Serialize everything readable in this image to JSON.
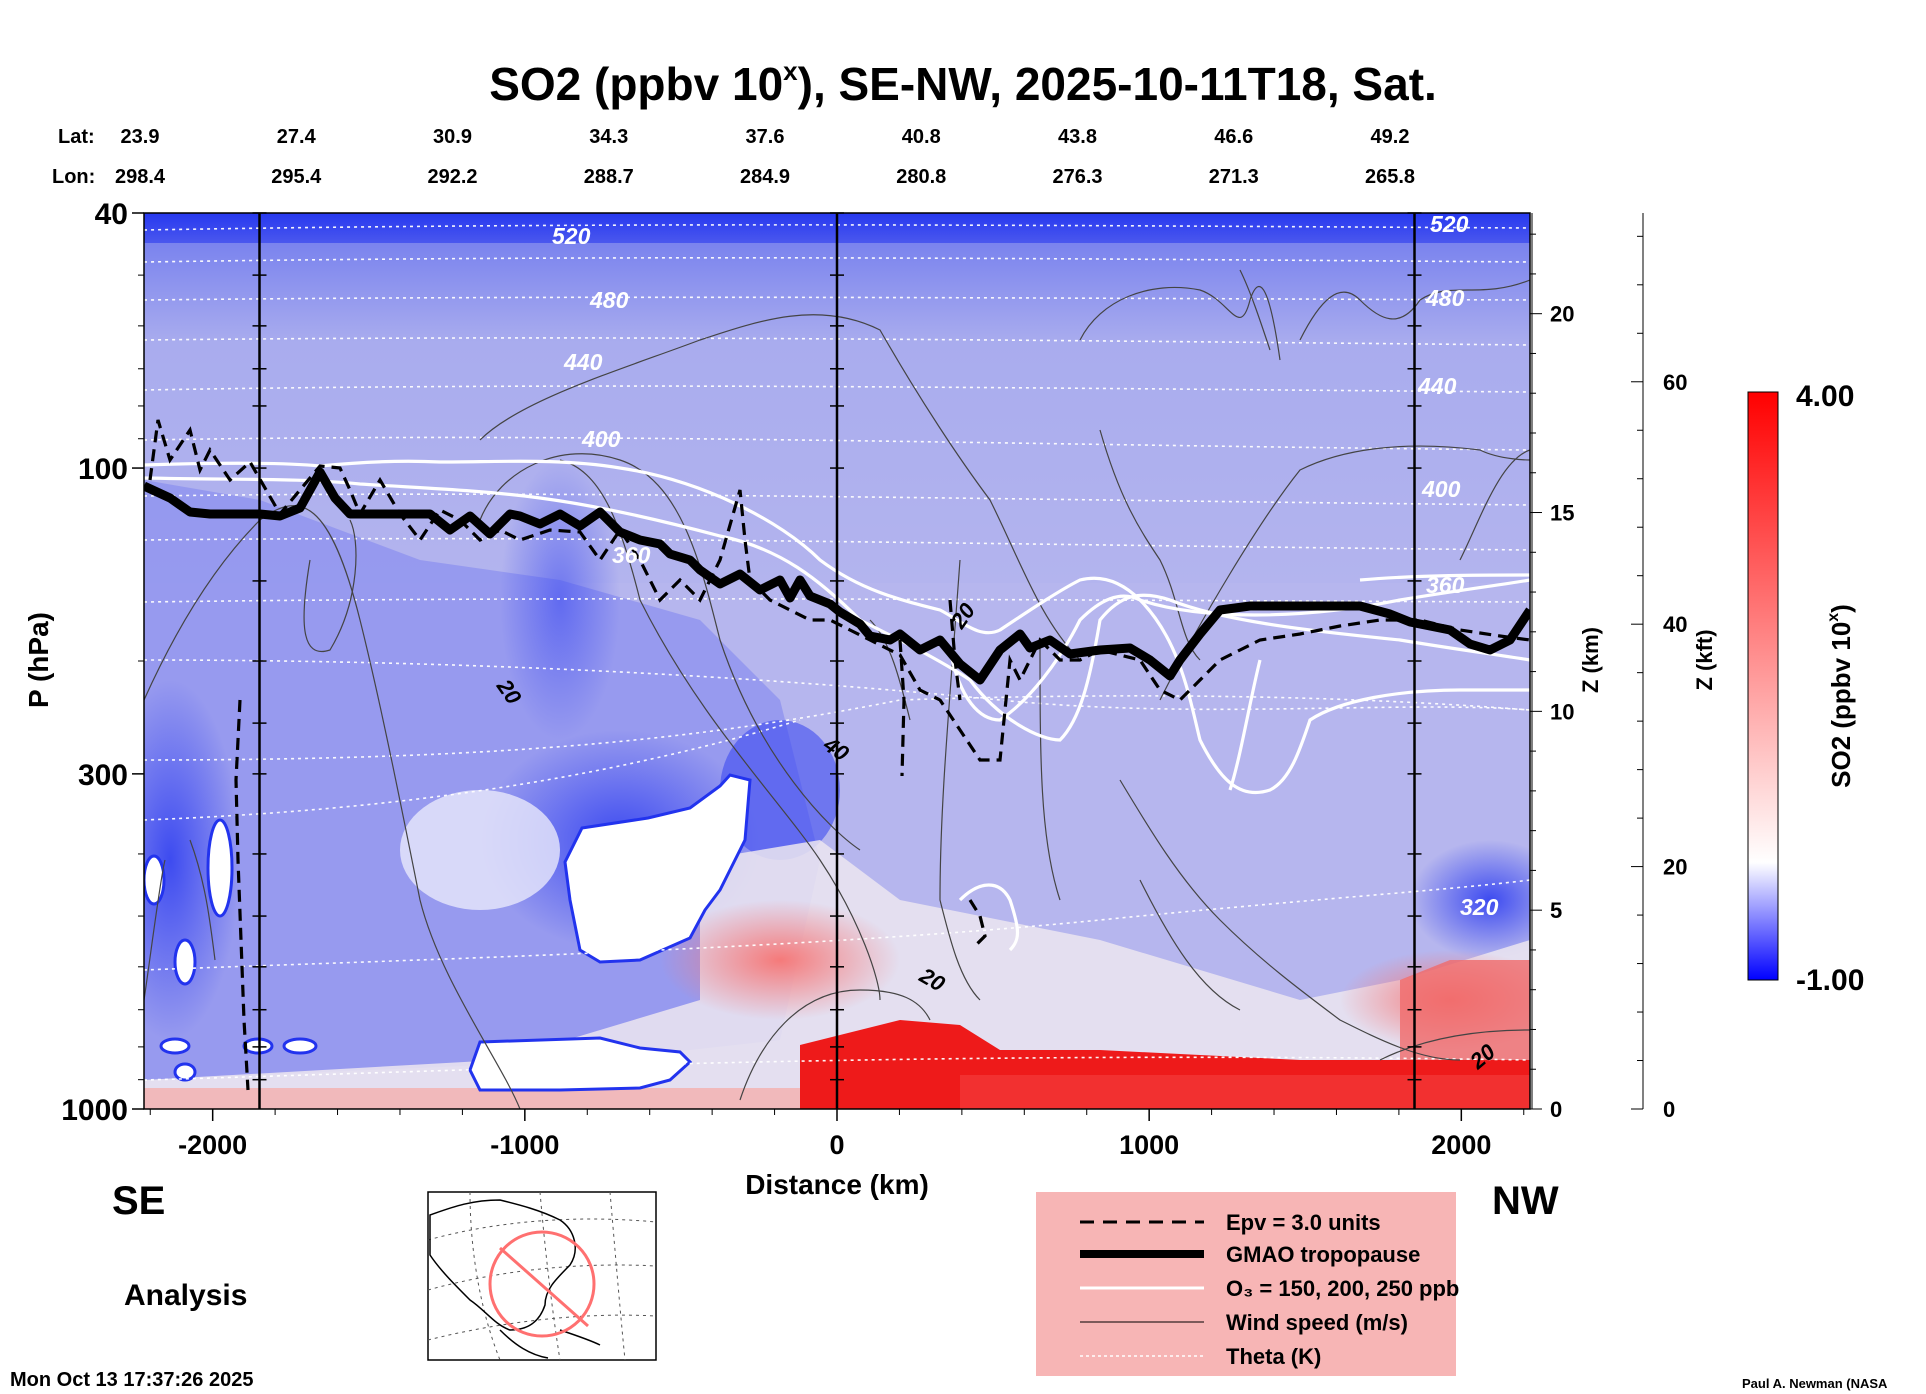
{
  "chart_data": {
    "type": "heatmap",
    "title": "SO2 (ppbv 10ˣ), SE-NW, 2025-10-11T18, Sat.",
    "title_main": "SO2 (ppbv 10",
    "title_sup": "x",
    "title_rest": "), SE-NW, 2025-10-11T18, Sat.",
    "lat_label": "Lat:",
    "lon_label": "Lon:",
    "lat_ticks": [
      "23.9",
      "27.4",
      "30.9",
      "34.3",
      "37.6",
      "40.8",
      "43.8",
      "46.6",
      "49.2"
    ],
    "lon_ticks": [
      "298.4",
      "295.4",
      "292.2",
      "288.7",
      "284.9",
      "280.8",
      "276.3",
      "271.3",
      "265.8"
    ],
    "xlabel": "Distance (km)",
    "x_ticks": [
      -2000,
      -1000,
      0,
      1000,
      2000
    ],
    "x_tick_labels": [
      "-2000",
      "-1000",
      "0",
      "1000",
      "2000"
    ],
    "xlim": [
      -2220,
      2220
    ],
    "ylabel": "P (hPa)",
    "y_scale": "log",
    "ylim": [
      1000,
      40
    ],
    "y_ticks": [
      40,
      100,
      300,
      1000
    ],
    "y_tick_labels": [
      "40",
      "100",
      "300",
      "1000"
    ],
    "z_km_label": "Z (km)",
    "z_km_ticks": [
      "0",
      "5",
      "10",
      "15",
      "20"
    ],
    "z_kft_label": "Z (kft)",
    "z_kft_ticks": [
      "0",
      "20",
      "40",
      "60"
    ],
    "colorbar": {
      "label": "SO2 (ppbv 10ˣ)",
      "label_main": "SO2 (ppbv 10",
      "label_sup": "x",
      "label_rest": ")",
      "min": -1.0,
      "max": 4.0,
      "min_label": "-1.00",
      "max_label": "4.00",
      "colors": [
        "#0000ff",
        "#ffffff",
        "#ff0000"
      ]
    },
    "vertical_markers_km": [
      -1850,
      0,
      1850
    ],
    "theta_labels": [
      "520",
      "480",
      "440",
      "400",
      "360",
      "320",
      "520",
      "480",
      "440",
      "400",
      "360"
    ],
    "wind_labels": [
      "20",
      "40",
      "20",
      "20",
      "20"
    ],
    "left_label": "SE",
    "right_label": "NW",
    "analysis_label": "Analysis",
    "legend": [
      {
        "label": "Epv = 3.0 units",
        "style": "dashed-black"
      },
      {
        "label": "GMAO tropopause",
        "style": "thick-black"
      },
      {
        "label": "O₃ = 150, 200, 250 ppb",
        "style": "white"
      },
      {
        "label": "Wind speed (m/s)",
        "style": "thin-black"
      },
      {
        "label": "Theta (K)",
        "style": "dotted-white"
      }
    ],
    "legend_bg": "#f7b5b5",
    "timestamp": "Mon Oct 13 17:37:26 2025",
    "credit": "Paul A. Newman (NASA"
  }
}
